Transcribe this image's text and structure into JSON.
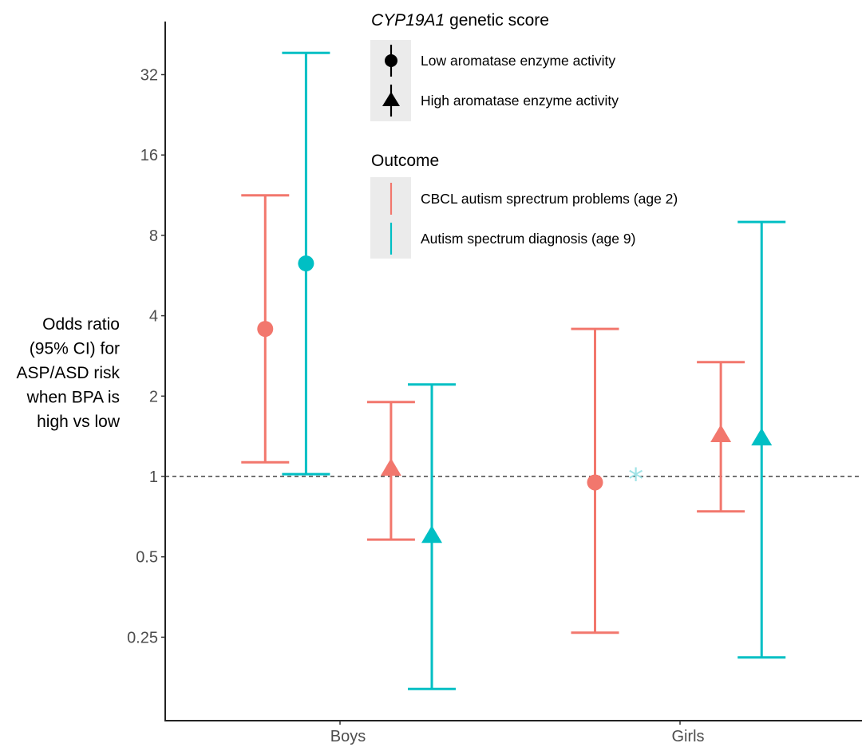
{
  "chart_data": {
    "type": "scatter",
    "subtype": "point-range (odds ratios with 95% CI)",
    "title": "",
    "xlabel": "",
    "ylabel": [
      "Odds ratio",
      "(95% CI) for",
      "ASP/ASD risk",
      "when BPA is",
      "high vs low"
    ],
    "y_scale": "log2",
    "ylim": [
      0.125,
      60
    ],
    "y_ticks": [
      0.25,
      0.5,
      1,
      2,
      4,
      8,
      16,
      32
    ],
    "y_tick_labels": [
      "0.25",
      "0.5",
      "1",
      "2",
      "4",
      "8",
      "16",
      "32"
    ],
    "reference_line": {
      "y": 1,
      "style": "dashed"
    },
    "categories": [
      "Boys",
      "Girls"
    ],
    "colors": {
      "CBCL autism sprectrum problems (age 2)": "#F2776D",
      "Autism spectrum diagnosis (age 9)": "#00BFC4"
    },
    "legend": {
      "placement": "top-center",
      "shape_title_prefix": "CYP19A1",
      "shape_title_suffix": " genetic score",
      "shape_entries": [
        {
          "label": "Low aromatase enzyme activity",
          "shape": "circle"
        },
        {
          "label": "High aromatase enzyme activity",
          "shape": "triangle"
        }
      ],
      "color_title": "Outcome",
      "color_entries": [
        {
          "label": "CBCL autism sprectrum problems (age 2)",
          "color": "#F2776D"
        },
        {
          "label": "Autism spectrum diagnosis (age 9)",
          "color": "#00BFC4"
        }
      ]
    },
    "points": [
      {
        "group": "Boys",
        "score": "Low aromatase enzyme activity",
        "outcome": "CBCL autism sprectrum problems (age 2)",
        "or": 3.57,
        "lo": 1.13,
        "hi": 11.3,
        "shape": "circle",
        "dodge": -0.22
      },
      {
        "group": "Boys",
        "score": "Low aromatase enzyme activity",
        "outcome": "Autism spectrum diagnosis (age 9)",
        "or": 6.28,
        "lo": 1.02,
        "hi": 38.6,
        "shape": "circle",
        "dodge": -0.1
      },
      {
        "group": "Boys",
        "score": "High aromatase enzyme activity",
        "outcome": "CBCL autism sprectrum problems (age 2)",
        "or": 1.07,
        "lo": 0.58,
        "hi": 1.9,
        "shape": "triangle",
        "dodge": 0.15
      },
      {
        "group": "Boys",
        "score": "High aromatase enzyme activity",
        "outcome": "Autism spectrum diagnosis (age 9)",
        "or": 0.6,
        "lo": 0.16,
        "hi": 2.21,
        "shape": "triangle",
        "dodge": 0.27
      },
      {
        "group": "Girls",
        "score": "Low aromatase enzyme activity",
        "outcome": "CBCL autism sprectrum problems (age 2)",
        "or": 0.95,
        "lo": 0.26,
        "hi": 3.57,
        "shape": "circle",
        "dodge": -0.25
      },
      {
        "group": "Girls",
        "score": "Low aromatase enzyme activity",
        "outcome": "Autism spectrum diagnosis (age 9)",
        "or": 1.0,
        "lo": null,
        "hi": null,
        "shape": "asterisk",
        "dodge": -0.13,
        "note": "*"
      },
      {
        "group": "Girls",
        "score": "High aromatase enzyme activity",
        "outcome": "CBCL autism sprectrum problems (age 2)",
        "or": 1.43,
        "lo": 0.74,
        "hi": 2.68,
        "shape": "triangle",
        "dodge": 0.12
      },
      {
        "group": "Girls",
        "score": "High aromatase enzyme activity",
        "outcome": "Autism spectrum diagnosis (age 9)",
        "or": 1.39,
        "lo": 0.21,
        "hi": 8.98,
        "shape": "triangle",
        "dodge": 0.24
      }
    ]
  }
}
